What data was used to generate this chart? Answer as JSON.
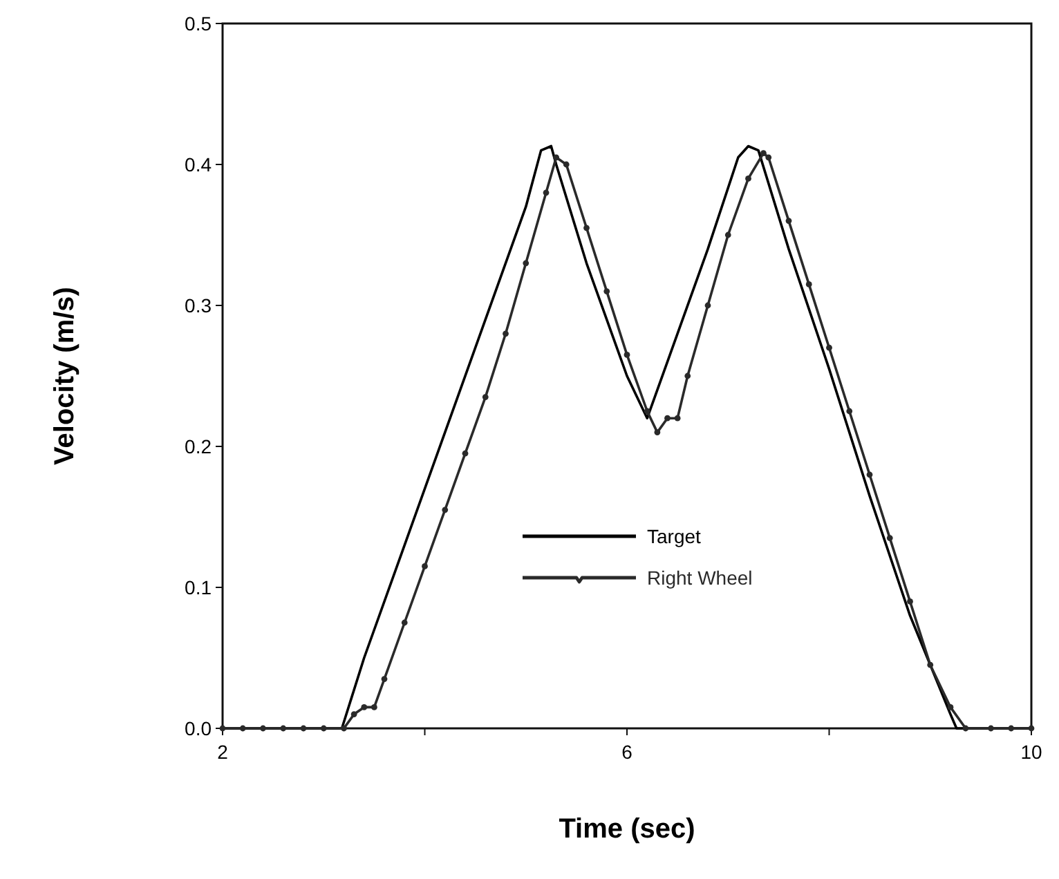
{
  "chart_data": {
    "type": "line",
    "xlabel": "Time  (sec)",
    "ylabel": "Velocity  (m/s)",
    "xlim": [
      2,
      10
    ],
    "ylim": [
      0,
      0.5
    ],
    "xticks": [
      2,
      {
        "value": 4,
        "label": null
      },
      6,
      {
        "value": 8,
        "label": null
      },
      10
    ],
    "yticks": [
      {
        "value": 0,
        "label": "0.0"
      },
      0.1,
      0.2,
      0.3,
      0.4,
      0.5
    ],
    "grid": false,
    "legend": "bottom",
    "line_style": "solid",
    "series": [
      {
        "name": "Target",
        "color": "#000000",
        "marker": "none",
        "x": [
          2,
          3.18,
          3.4,
          3.8,
          4.2,
          4.6,
          5.0,
          5.15,
          5.25,
          5.3,
          5.6,
          6.0,
          6.2,
          6.4,
          6.8,
          7.1,
          7.2,
          7.3,
          7.6,
          8.0,
          8.4,
          8.8,
          9.2,
          9.26,
          10
        ],
        "values": [
          0,
          0,
          0.05,
          0.13,
          0.21,
          0.29,
          0.37,
          0.41,
          0.413,
          0.4,
          0.33,
          0.25,
          0.22,
          0.26,
          0.34,
          0.405,
          0.413,
          0.41,
          0.34,
          0.255,
          0.165,
          0.08,
          0.01,
          0,
          0
        ]
      },
      {
        "name": "Right Wheel",
        "color": "#2a2a2a",
        "marker": "circle",
        "x": [
          2,
          2.2,
          2.4,
          2.6,
          2.8,
          3.0,
          3.2,
          3.3,
          3.4,
          3.5,
          3.6,
          3.8,
          4.0,
          4.2,
          4.4,
          4.6,
          4.8,
          5.0,
          5.2,
          5.3,
          5.4,
          5.6,
          5.8,
          6.0,
          6.2,
          6.3,
          6.4,
          6.5,
          6.6,
          6.8,
          7.0,
          7.2,
          7.35,
          7.4,
          7.6,
          7.8,
          8.0,
          8.2,
          8.4,
          8.6,
          8.8,
          9.0,
          9.2,
          9.35,
          9.6,
          9.8,
          10
        ],
        "values": [
          0,
          0,
          0,
          0,
          0,
          0,
          0,
          0.01,
          0.015,
          0.015,
          0.035,
          0.075,
          0.115,
          0.155,
          0.195,
          0.235,
          0.28,
          0.33,
          0.38,
          0.405,
          0.4,
          0.355,
          0.31,
          0.265,
          0.225,
          0.21,
          0.22,
          0.22,
          0.25,
          0.3,
          0.35,
          0.39,
          0.408,
          0.405,
          0.36,
          0.315,
          0.27,
          0.225,
          0.18,
          0.135,
          0.09,
          0.045,
          0.015,
          0,
          0,
          0,
          0
        ]
      }
    ]
  }
}
